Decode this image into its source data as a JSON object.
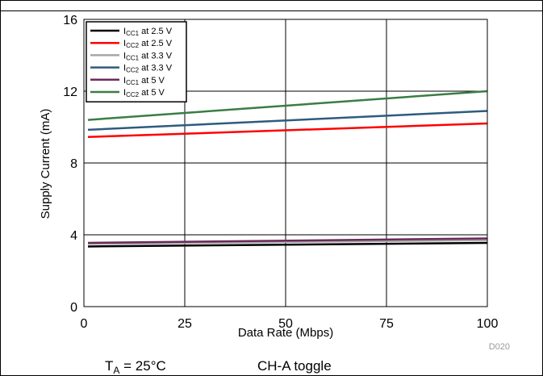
{
  "chart_data": {
    "type": "line",
    "xlabel": "Data Rate (Mbps)",
    "ylabel": "Supply Current (mA)",
    "xlim": [
      0,
      100
    ],
    "ylim": [
      0,
      16
    ],
    "xticks": [
      0,
      25,
      50,
      75,
      100
    ],
    "yticks": [
      0,
      4,
      8,
      12,
      16
    ],
    "grid": true,
    "legend_position": "top-left",
    "series": [
      {
        "name": "ICC1 at 2.5 V",
        "label_main": "I",
        "label_sub": "CC1",
        "label_rest": " at 2.5 V",
        "color": "#000000",
        "points": [
          [
            1,
            3.35
          ],
          [
            100,
            3.55
          ]
        ]
      },
      {
        "name": "ICC2 at 2.5 V",
        "label_main": "I",
        "label_sub": "CC2",
        "label_rest": " at 2.5 V",
        "color": "#ff0000",
        "points": [
          [
            1,
            9.45
          ],
          [
            100,
            10.2
          ]
        ]
      },
      {
        "name": "ICC1 at 3.3 V",
        "label_main": "I",
        "label_sub": "CC1",
        "label_rest": " at 3.3 V",
        "color": "#a6a6a6",
        "points": [
          [
            1,
            3.5
          ],
          [
            100,
            3.7
          ]
        ]
      },
      {
        "name": "ICC2 at 3.3 V",
        "label_main": "I",
        "label_sub": "CC2",
        "label_rest": " at 3.3 V",
        "color": "#2e5b7f",
        "points": [
          [
            1,
            9.85
          ],
          [
            100,
            10.9
          ]
        ]
      },
      {
        "name": "ICC1 at 5 V",
        "label_main": "I",
        "label_sub": "CC1",
        "label_rest": " at 5 V",
        "color": "#6b2a5b",
        "points": [
          [
            1,
            3.55
          ],
          [
            100,
            3.8
          ]
        ]
      },
      {
        "name": "ICC2 at 5 V",
        "label_main": "I",
        "label_sub": "CC2",
        "label_rest": " at 5 V",
        "color": "#3a7d44",
        "points": [
          [
            1,
            10.4
          ],
          [
            100,
            12.0
          ]
        ]
      }
    ],
    "code": "D020"
  },
  "footer": {
    "ta_main": "T",
    "ta_sub": "A",
    "ta_rest": " = 25°C",
    "mode": "CH-A toggle"
  }
}
